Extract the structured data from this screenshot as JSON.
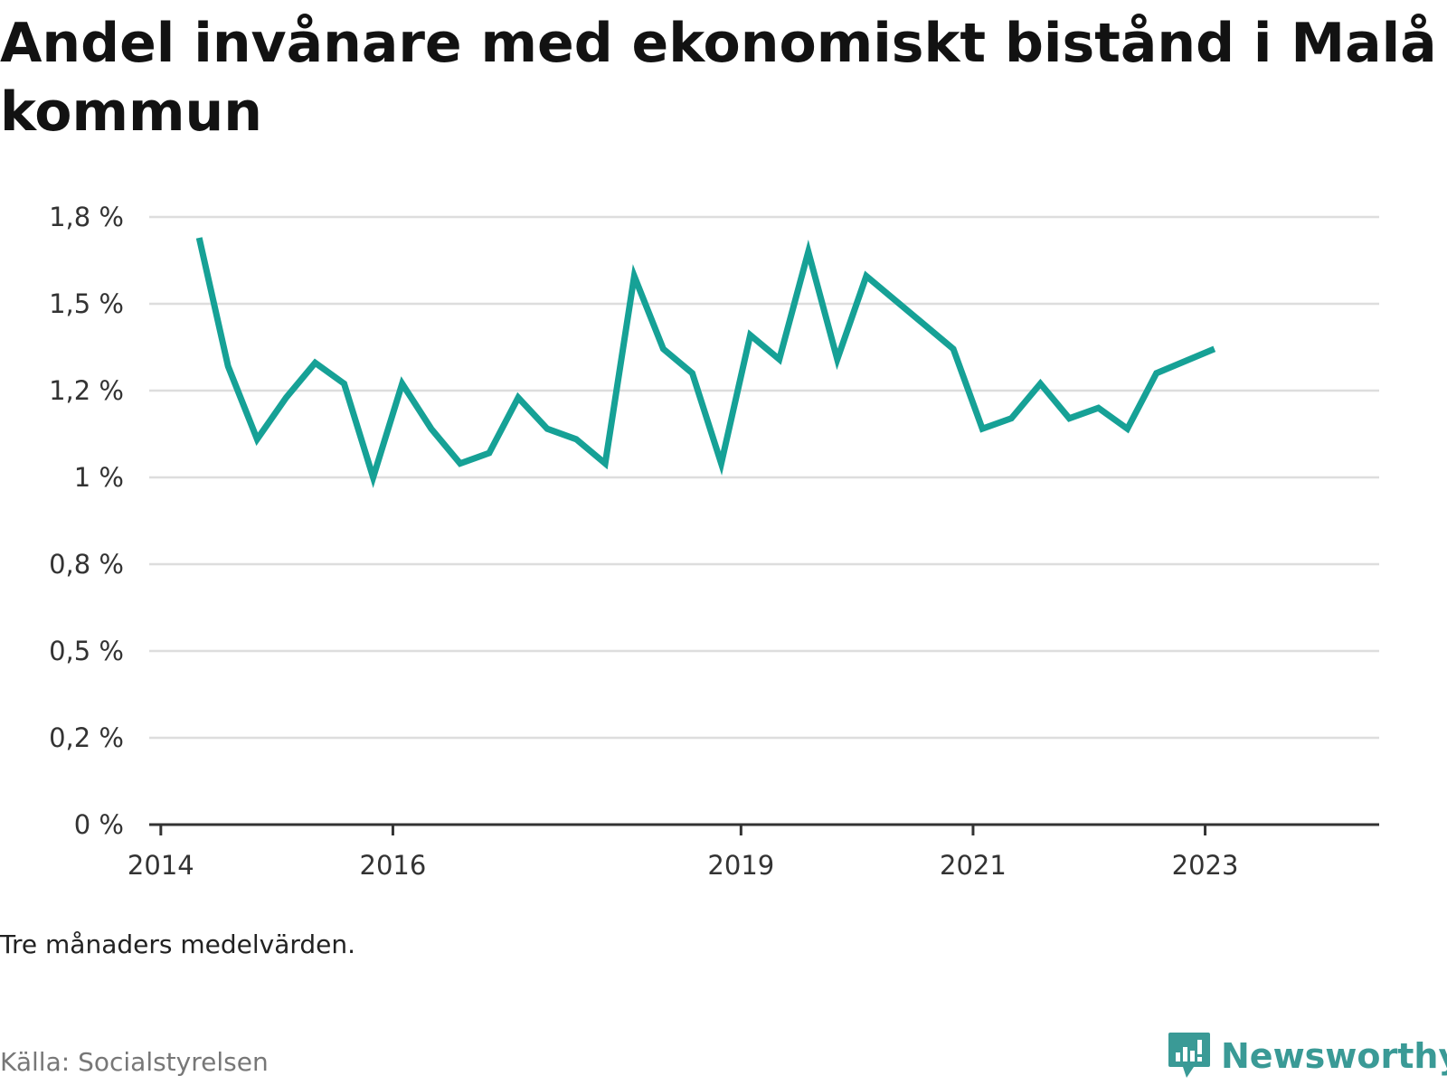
{
  "chart_data": {
    "type": "line",
    "title": "Andel invånare med ekonomiskt bistånd i Malå kommun",
    "xlabel": "",
    "ylabel": "",
    "y_ticks": [
      "0 %",
      "0,2 %",
      "0,5 %",
      "0,8 %",
      "1 %",
      "1,2 %",
      "1,5 %",
      "1,8 %"
    ],
    "y_tick_values": [
      0,
      0.25,
      0.5,
      0.75,
      1.0,
      1.25,
      1.5,
      1.75
    ],
    "ylim": [
      0,
      1.75
    ],
    "x_ticks": [
      "2014",
      "2016",
      "2019",
      "2021",
      "2023"
    ],
    "x_tick_values": [
      2014.0,
      2016.0,
      2019.0,
      2021.0,
      2023.0
    ],
    "xlim": [
      2013.9,
      2024.5
    ],
    "line_color": "#16a196",
    "grid": true,
    "series": [
      {
        "x": [
          2014.33,
          2014.58,
          2014.83,
          2015.08,
          2015.33,
          2015.58,
          2015.83,
          2016.08,
          2016.33,
          2016.58,
          2016.83,
          2017.08,
          2017.33,
          2017.58,
          2017.83,
          2018.08,
          2018.33,
          2018.58,
          2018.83,
          2019.08,
          2019.33,
          2019.58,
          2019.83,
          2020.08,
          2020.83,
          2021.08,
          2021.33,
          2021.58,
          2021.83,
          2022.08,
          2022.33,
          2022.58,
          2023.08
        ],
        "y": [
          1.69,
          1.32,
          1.11,
          1.23,
          1.33,
          1.27,
          1.0,
          1.27,
          1.14,
          1.04,
          1.07,
          1.23,
          1.14,
          1.11,
          1.04,
          1.58,
          1.37,
          1.3,
          1.04,
          1.41,
          1.34,
          1.65,
          1.34,
          1.58,
          1.37,
          1.14,
          1.17,
          1.27,
          1.17,
          1.2,
          1.14,
          1.3,
          1.37
        ]
      }
    ]
  },
  "footer": {
    "note": "Tre månaders medelvärden.",
    "source": "Källa: Socialstyrelsen",
    "brand": "Newsworthy"
  },
  "icons": {
    "brand_logo": "newsworthy-chart-bubble-icon",
    "brand_color": "#3a9a96"
  }
}
